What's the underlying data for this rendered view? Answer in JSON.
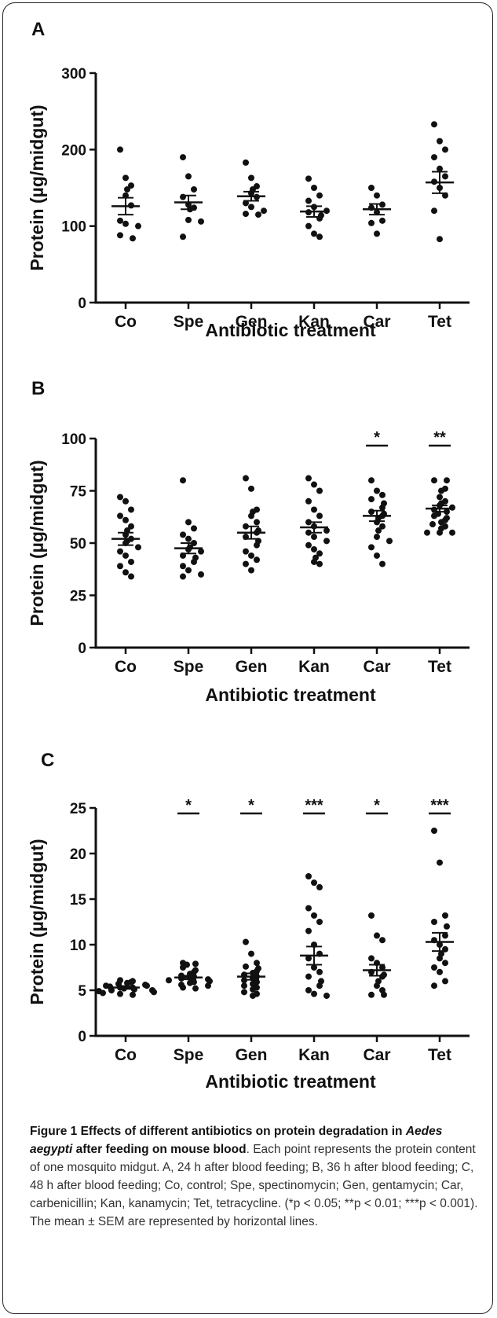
{
  "chart_data": [
    {
      "type": "scatter",
      "panel": "A",
      "xlabel": "Antibiotic treatment",
      "ylabel": "Protein (µg/midgut)",
      "ylim": [
        0,
        300
      ],
      "yticks": [
        0,
        100,
        200,
        300
      ],
      "categories": [
        "Co",
        "Spe",
        "Gen",
        "Kan",
        "Car",
        "Tet"
      ],
      "series": [
        {
          "category": "Co",
          "points": [
            200,
            163,
            153,
            148,
            140,
            127,
            107,
            103,
            100,
            88,
            84
          ],
          "mean": 126,
          "sem": 11
        },
        {
          "category": "Spe",
          "points": [
            190,
            165,
            148,
            138,
            128,
            124,
            122,
            108,
            106,
            86
          ],
          "mean": 131,
          "sem": 9
        },
        {
          "category": "Gen",
          "points": [
            183,
            163,
            152,
            148,
            143,
            138,
            130,
            125,
            120,
            116,
            115
          ],
          "mean": 139,
          "sem": 6
        },
        {
          "category": "Kan",
          "points": [
            162,
            150,
            140,
            133,
            125,
            120,
            118,
            114,
            110,
            100,
            90,
            86
          ],
          "mean": 119,
          "sem": 7
        },
        {
          "category": "Car",
          "points": [
            150,
            140,
            128,
            124,
            118,
            107,
            104,
            90
          ],
          "mean": 122,
          "sem": 7
        },
        {
          "category": "Tet",
          "points": [
            233,
            211,
            200,
            190,
            175,
            165,
            158,
            150,
            140,
            120,
            83
          ],
          "mean": 157,
          "sem": 14
        }
      ],
      "significance": [
        "",
        "",
        "",
        "",
        "",
        ""
      ]
    },
    {
      "type": "scatter",
      "panel": "B",
      "xlabel": "Antibiotic treatment",
      "ylabel": "Protein (µg/midgut)",
      "ylim": [
        0,
        100
      ],
      "yticks": [
        0,
        25,
        50,
        75,
        100
      ],
      "categories": [
        "Co",
        "Spe",
        "Gen",
        "Kan",
        "Car",
        "Tet"
      ],
      "series": [
        {
          "category": "Co",
          "points": [
            72,
            70,
            66,
            63,
            61,
            58,
            56,
            54,
            52,
            51,
            50,
            48,
            46,
            44,
            41,
            39,
            36,
            34
          ],
          "mean": 52,
          "sem": 3
        },
        {
          "category": "Spe",
          "points": [
            80,
            60,
            57,
            54,
            52,
            50,
            48,
            47,
            46,
            44,
            43,
            41,
            39,
            37,
            35,
            34
          ],
          "mean": 47.5,
          "sem": 2.5
        },
        {
          "category": "Gen",
          "points": [
            81,
            76,
            66,
            65,
            63,
            60,
            58,
            56,
            55,
            53,
            51,
            49,
            46,
            44,
            42,
            40,
            37
          ],
          "mean": 55,
          "sem": 3
        },
        {
          "category": "Kan",
          "points": [
            81,
            78,
            75,
            70,
            66,
            63,
            60,
            58,
            56,
            55,
            53,
            51,
            49,
            47,
            45,
            43,
            41,
            40
          ],
          "mean": 57.5,
          "sem": 2.5
        },
        {
          "category": "Car",
          "points": [
            80,
            75,
            73,
            71,
            69,
            67,
            65,
            64,
            63,
            62,
            60,
            58,
            56,
            53,
            51,
            48,
            44,
            40
          ],
          "mean": 63,
          "sem": 2.5
        },
        {
          "category": "Tet",
          "points": [
            80,
            80,
            76,
            75,
            72,
            70,
            69,
            68,
            67,
            66,
            65,
            64,
            63,
            62,
            61,
            60,
            59,
            58,
            57,
            55,
            55,
            55
          ],
          "mean": 66.5,
          "sem": 1.5
        }
      ],
      "significance": [
        "",
        "",
        "",
        "",
        "*",
        "**"
      ]
    },
    {
      "type": "scatter",
      "panel": "C",
      "xlabel": "Antibiotic treatment",
      "ylabel": "Protein (µg/midgut)",
      "ylim": [
        0,
        25
      ],
      "yticks": [
        0,
        5,
        10,
        15,
        20,
        25
      ],
      "categories": [
        "Co",
        "Spe",
        "Gen",
        "Kan",
        "Car",
        "Tet"
      ],
      "series": [
        {
          "category": "Co",
          "points": [
            6.1,
            6.0,
            5.9,
            5.8,
            5.7,
            5.6,
            5.5,
            5.5,
            5.4,
            5.3,
            5.3,
            5.2,
            5.1,
            5.0,
            5.0,
            4.9,
            4.8,
            4.7,
            4.6,
            4.5
          ],
          "mean": 5.3,
          "sem": 0.15
        },
        {
          "category": "Spe",
          "points": [
            8.0,
            7.9,
            7.8,
            7.5,
            7.2,
            7.0,
            6.8,
            6.6,
            6.5,
            6.4,
            6.3,
            6.2,
            6.1,
            6.0,
            5.9,
            5.8,
            5.6,
            5.5,
            5.3,
            5.2
          ],
          "mean": 6.4,
          "sem": 0.2
        },
        {
          "category": "Gen",
          "points": [
            10.3,
            9.0,
            8.0,
            7.6,
            7.4,
            7.1,
            6.9,
            6.7,
            6.5,
            6.3,
            6.1,
            5.9,
            5.7,
            5.5,
            5.3,
            5.1,
            4.8,
            4.6,
            4.4
          ],
          "mean": 6.5,
          "sem": 0.35
        },
        {
          "category": "Kan",
          "points": [
            17.5,
            16.8,
            16.3,
            14.0,
            13.2,
            12.5,
            11.5,
            10.0,
            9.0,
            8.5,
            7.5,
            7.0,
            6.5,
            6.0,
            5.5,
            5.0,
            4.6,
            4.4
          ],
          "mean": 8.8,
          "sem": 1.0
        },
        {
          "category": "Car",
          "points": [
            13.2,
            11.0,
            10.5,
            8.5,
            8.0,
            7.5,
            7.0,
            6.7,
            6.5,
            6.0,
            5.5,
            5.0,
            4.5,
            4.5
          ],
          "mean": 7.2,
          "sem": 0.6
        },
        {
          "category": "Tet",
          "points": [
            22.5,
            19.0,
            13.2,
            12.5,
            12.0,
            11.0,
            10.5,
            10.0,
            9.5,
            9.0,
            8.5,
            8.0,
            7.5,
            7.0,
            6.0,
            5.5
          ],
          "mean": 10.3,
          "sem": 1.0
        }
      ],
      "significance": [
        "",
        "*",
        "*",
        "***",
        "*",
        "***"
      ]
    }
  ],
  "caption": {
    "bold_1": "Figure 1 Effects of different antibiotics on protein degradation in ",
    "bold_italic": "Aedes aegypti",
    "bold_2": " after feeding on mouse blood",
    "body": ". Each point represents the protein content of one mosquito midgut. A, 24 h after blood feeding; B, 36 h after blood feeding; C, 48 h after blood feeding; Co, control; Spe, spectinomycin; Gen, gentamycin; Car, carbenicillin; Kan, kanamycin; Tet, tetracycline. (*p < 0.05; **p < 0.01; ***p < 0.001). The mean ± SEM are represented by horizontal lines."
  }
}
